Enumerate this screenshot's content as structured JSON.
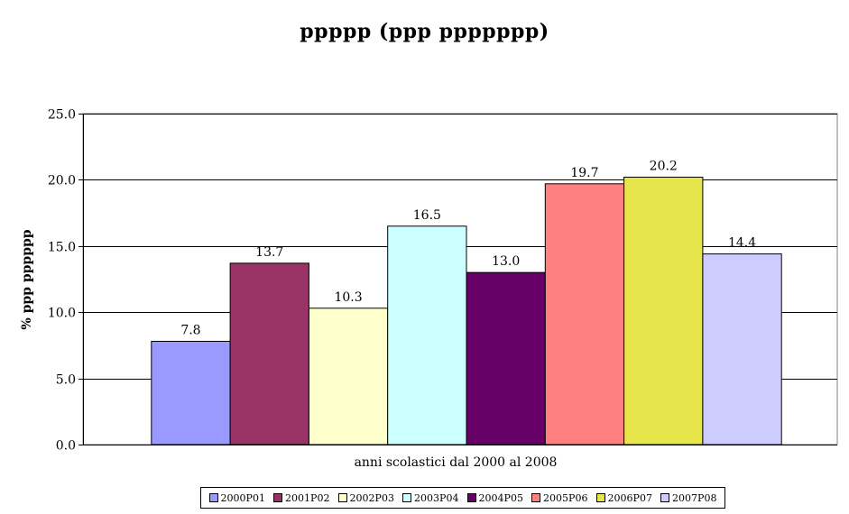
{
  "chart_data": {
    "type": "bar",
    "title": "ppppp  (ppp ppppppp)",
    "xlabel": "anni scolastici dal 2000 al 2008",
    "ylabel": "% ppp pppppp",
    "ylim": [
      0,
      25
    ],
    "yticks": [
      "0.0",
      "5.0",
      "10.0",
      "15.0",
      "20.0",
      "25.0"
    ],
    "grid": true,
    "legend_position": "bottom",
    "series": [
      {
        "name": "2000P01",
        "value": 7.8,
        "label": "7.8",
        "color": "#9999ff"
      },
      {
        "name": "2001P02",
        "value": 13.7,
        "label": "13.7",
        "color": "#993366"
      },
      {
        "name": "2002P03",
        "value": 10.3,
        "label": "10.3",
        "color": "#ffffcc"
      },
      {
        "name": "2003P04",
        "value": 16.5,
        "label": "16.5",
        "color": "#ccffff"
      },
      {
        "name": "2004P05",
        "value": 13.0,
        "label": "13.0",
        "color": "#660066"
      },
      {
        "name": "2005P06",
        "value": 19.7,
        "label": "19.7",
        "color": "#ff8080"
      },
      {
        "name": "2006P07",
        "value": 20.2,
        "label": "20.2",
        "color": "#e6e64c"
      },
      {
        "name": "2007P08",
        "value": 14.4,
        "label": "14.4",
        "color": "#ccccff"
      }
    ]
  }
}
